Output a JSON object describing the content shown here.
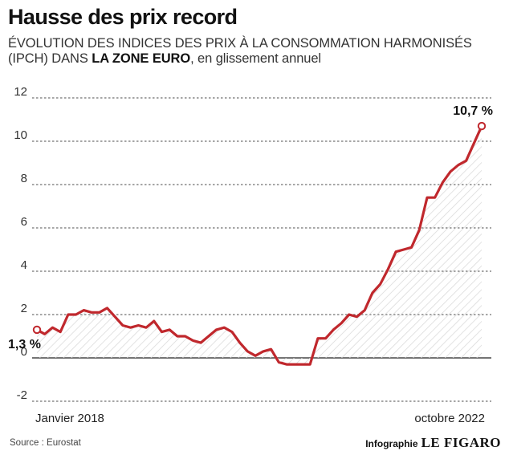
{
  "header": {
    "title": "Hausse des prix record",
    "subtitle_part1": "ÉVOLUTION DES INDICES DES PRIX À LA CONSOMMATION HARMONISÉS (IPCH) DANS ",
    "subtitle_bold": "LA ZONE EURO",
    "subtitle_part2": ", en glissement annuel"
  },
  "footer": {
    "source": "Source : Eurostat",
    "credit_prefix": "Infographie",
    "credit_brand": "LE FIGARO"
  },
  "colors": {
    "line": "#c0282d",
    "grid": "#4d4d4d",
    "hatch": "#d9d9d9",
    "text": "#1a1a1a"
  },
  "chart_data": {
    "type": "line",
    "title": "Hausse des prix record",
    "xlabel": "",
    "ylabel": "",
    "ylim": [
      -2,
      12
    ],
    "yticks": [
      -2,
      0,
      2,
      4,
      6,
      8,
      10,
      12
    ],
    "x_labels": [
      "Janvier 2018",
      "octobre 2022"
    ],
    "grid": true,
    "area_fill": "hatched",
    "series": [
      {
        "name": "",
        "x": [
          "2018-01",
          "2018-02",
          "2018-03",
          "2018-04",
          "2018-05",
          "2018-06",
          "2018-07",
          "2018-08",
          "2018-09",
          "2018-10",
          "2018-11",
          "2018-12",
          "2019-01",
          "2019-02",
          "2019-03",
          "2019-04",
          "2019-05",
          "2019-06",
          "2019-07",
          "2019-08",
          "2019-09",
          "2019-10",
          "2019-11",
          "2019-12",
          "2020-01",
          "2020-02",
          "2020-03",
          "2020-04",
          "2020-05",
          "2020-06",
          "2020-07",
          "2020-08",
          "2020-09",
          "2020-10",
          "2020-11",
          "2020-12",
          "2021-01",
          "2021-02",
          "2021-03",
          "2021-04",
          "2021-05",
          "2021-06",
          "2021-07",
          "2021-08",
          "2021-09",
          "2021-10",
          "2021-11",
          "2021-12",
          "2022-01",
          "2022-02",
          "2022-03",
          "2022-04",
          "2022-05",
          "2022-06",
          "2022-07",
          "2022-08",
          "2022-09",
          "2022-10"
        ],
        "values": [
          1.3,
          1.1,
          1.4,
          1.2,
          2.0,
          2.0,
          2.2,
          2.1,
          2.1,
          2.3,
          1.9,
          1.5,
          1.4,
          1.5,
          1.4,
          1.7,
          1.2,
          1.3,
          1.0,
          1.0,
          0.8,
          0.7,
          1.0,
          1.3,
          1.4,
          1.2,
          0.7,
          0.3,
          0.1,
          0.3,
          0.4,
          -0.2,
          -0.3,
          -0.3,
          -0.3,
          -0.3,
          0.9,
          0.9,
          1.3,
          1.6,
          2.0,
          1.9,
          2.2,
          3.0,
          3.4,
          4.1,
          4.9,
          5.0,
          5.1,
          5.9,
          7.4,
          7.4,
          8.1,
          8.6,
          8.9,
          9.1,
          9.9,
          10.7
        ]
      }
    ],
    "annotations": [
      {
        "label": "1,3 %",
        "value": 1.3,
        "at": "first"
      },
      {
        "label": "10,7 %",
        "value": 10.7,
        "at": "last"
      }
    ]
  }
}
